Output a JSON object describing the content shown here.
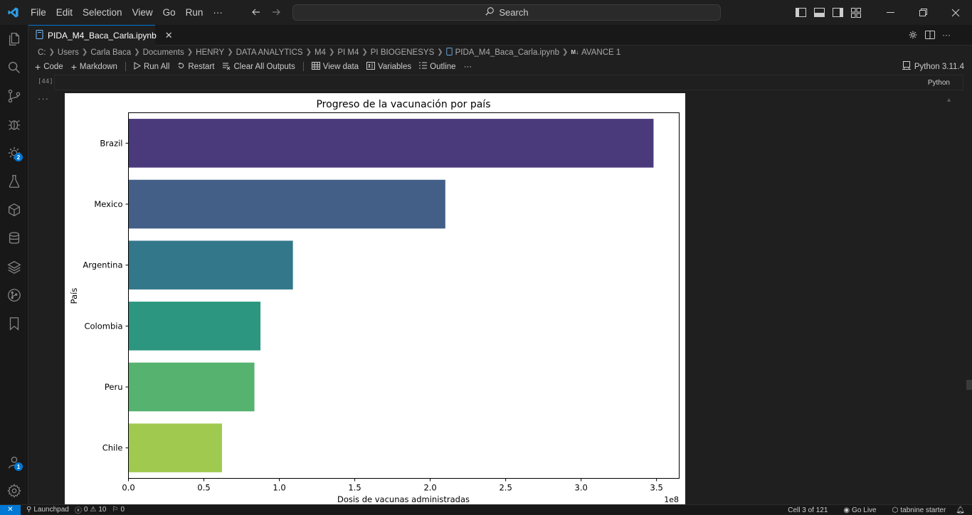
{
  "menu": [
    "File",
    "Edit",
    "Selection",
    "View",
    "Go",
    "Run",
    "···"
  ],
  "search": {
    "label": "Search"
  },
  "tab": {
    "title": "PIDA_M4_Baca_Carla.ipynb"
  },
  "breadcrumb": [
    "C:",
    "Users",
    "Carla Baca",
    "Documents",
    "HENRY",
    "DATA ANALYTICS",
    "M4",
    "PI M4",
    "PI BIOGENESYS",
    "PIDA_M4_Baca_Carla.ipynb",
    "M↓",
    "AVANCE 1"
  ],
  "toolbar": {
    "code": "Code",
    "markdown": "Markdown",
    "run_all": "Run All",
    "restart": "Restart",
    "clear_outputs": "Clear All Outputs",
    "view_data": "View data",
    "variables": "Variables",
    "outline": "Outline",
    "more": "···",
    "kernel": "Python 3.11.4"
  },
  "cell": {
    "count": "[44]",
    "language": "Python",
    "more": "···"
  },
  "activity_badges": {
    "extensions": "2",
    "accounts": "1"
  },
  "status": {
    "launchpad": "Launchpad",
    "errors": "0",
    "warnings": "10",
    "ports": "0",
    "cell_position": "Cell 3 of 121",
    "go_live": "Go Live",
    "tabnine": "tabnine starter"
  },
  "chart_data": {
    "type": "bar",
    "orientation": "horizontal",
    "title": "Progreso de la vacunación por país",
    "xlabel": "Dosis de vacunas administradas",
    "ylabel": "País",
    "x_offset_label": "1e8",
    "categories": [
      "Brazil",
      "Mexico",
      "Argentina",
      "Colombia",
      "Peru",
      "Chile"
    ],
    "values": [
      348000000,
      210000000,
      109000000,
      87500000,
      83500000,
      62000000
    ],
    "xlim": [
      0,
      365000000
    ],
    "xticks": [
      0,
      50000000,
      100000000,
      150000000,
      200000000,
      250000000,
      300000000,
      350000000
    ],
    "xtick_labels": [
      "0.0",
      "0.5",
      "1.0",
      "1.5",
      "2.0",
      "2.5",
      "3.0",
      "3.5"
    ],
    "colors": [
      "#4b3a7b",
      "#435f87",
      "#33778a",
      "#2c9680",
      "#55b36f",
      "#a0ca4f"
    ],
    "grid": false,
    "legend": "none"
  }
}
